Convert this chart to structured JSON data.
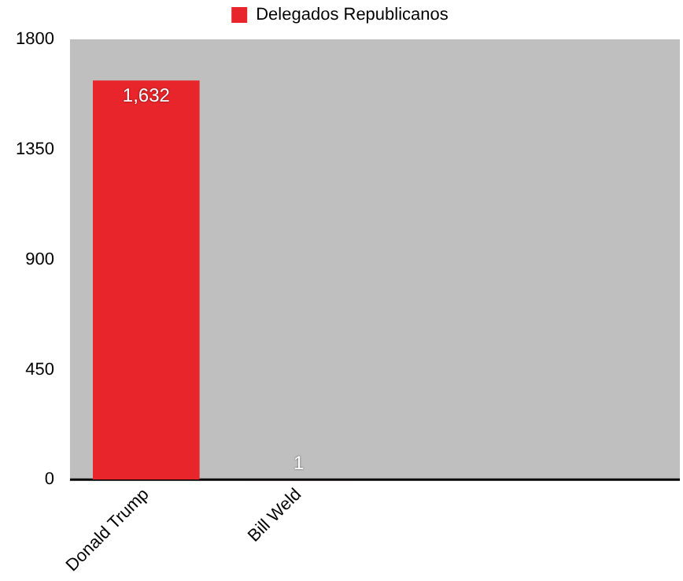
{
  "chart_data": {
    "type": "bar",
    "categories": [
      "Donald Trump",
      "Bill Weld",
      null,
      null
    ],
    "series": [
      {
        "name": "Delegados Republicanos",
        "color": "#e8252a",
        "values": [
          1632,
          1,
          null,
          null
        ],
        "value_labels": [
          "1,632",
          "1",
          null,
          null
        ]
      }
    ],
    "ylim": [
      0,
      1800
    ],
    "yticks": [
      0,
      450,
      900,
      1350,
      1800
    ],
    "grid": false,
    "legend": "top"
  }
}
